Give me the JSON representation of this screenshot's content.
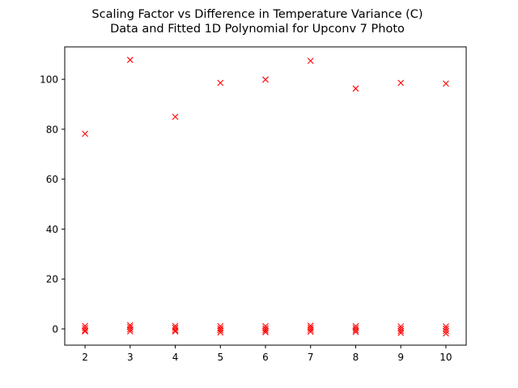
{
  "chart_data": {
    "type": "scatter",
    "title": "Scaling Factor vs Difference in Temperature Variance (C)",
    "subtitle": "Data and Fitted 1D Polynomial for Upconv 7 Photo",
    "xlabel": "",
    "ylabel": "",
    "xlim": [
      1.55,
      10.45
    ],
    "ylim": [
      -6.5,
      113.0
    ],
    "xticks": [
      2,
      3,
      4,
      5,
      6,
      7,
      8,
      9,
      10
    ],
    "yticks": [
      0,
      20,
      40,
      60,
      80,
      100
    ],
    "grid": false,
    "legend": "none",
    "marker": "x",
    "marker_color": "#ff0000",
    "series": [
      {
        "points": [
          [
            2,
            78.2
          ],
          [
            3,
            107.8
          ],
          [
            4,
            85.0
          ],
          [
            5,
            98.6
          ],
          [
            6,
            99.9
          ],
          [
            7,
            107.4
          ],
          [
            8,
            96.3
          ],
          [
            9,
            98.6
          ],
          [
            10,
            98.3
          ],
          [
            2,
            1.2
          ],
          [
            2,
            0.3
          ],
          [
            2,
            -0.6
          ],
          [
            2,
            -1.0
          ],
          [
            3,
            1.5
          ],
          [
            3,
            0.7
          ],
          [
            3,
            -0.2
          ],
          [
            3,
            -1.0
          ],
          [
            4,
            1.2
          ],
          [
            4,
            0.4
          ],
          [
            4,
            -0.5
          ],
          [
            4,
            -1.0
          ],
          [
            5,
            1.1
          ],
          [
            5,
            0.2
          ],
          [
            5,
            -0.6
          ],
          [
            5,
            -1.4
          ],
          [
            6,
            1.1
          ],
          [
            6,
            0.2
          ],
          [
            6,
            -0.6
          ],
          [
            6,
            -1.3
          ],
          [
            7,
            1.3
          ],
          [
            7,
            0.5
          ],
          [
            7,
            -0.3
          ],
          [
            7,
            -1.1
          ],
          [
            8,
            1.1
          ],
          [
            8,
            0.3
          ],
          [
            8,
            -0.5
          ],
          [
            8,
            -1.2
          ],
          [
            9,
            1.0
          ],
          [
            9,
            0.1
          ],
          [
            9,
            -0.8
          ],
          [
            9,
            -1.6
          ],
          [
            10,
            1.0
          ],
          [
            10,
            0.1
          ],
          [
            10,
            -0.8
          ],
          [
            10,
            -1.8
          ]
        ]
      }
    ]
  }
}
